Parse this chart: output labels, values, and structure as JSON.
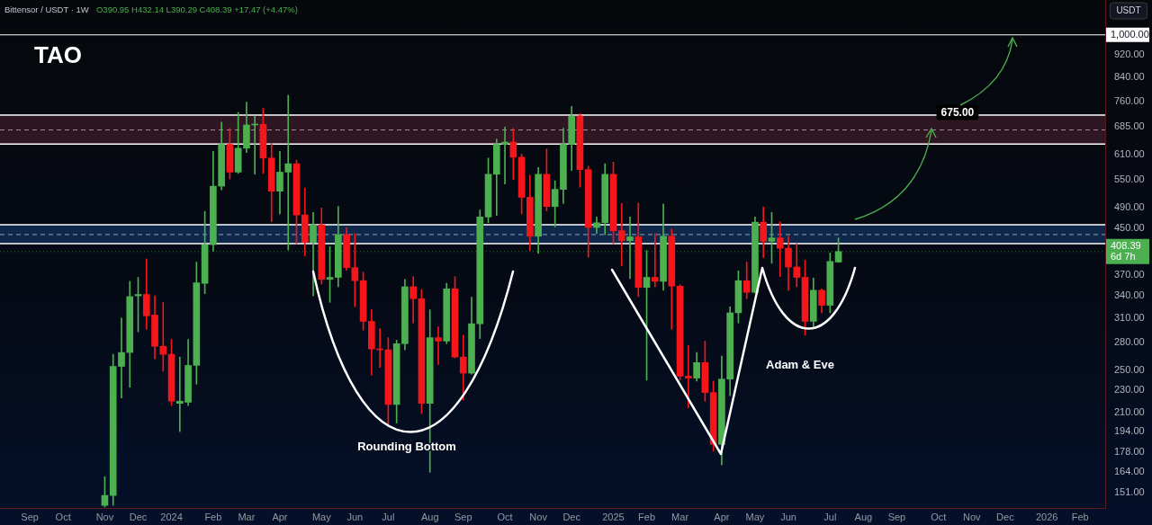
{
  "chart_data": {
    "type": "candlestick",
    "title": "TAO",
    "ylabel": "USDT",
    "x": [
      "2023-11-06",
      "2023-11-13",
      "2023-11-20",
      "2023-11-27",
      "2023-12-04",
      "2023-12-11",
      "2023-12-18",
      "2023-12-25",
      "2024-01-01",
      "2024-01-08",
      "2024-01-15",
      "2024-01-22",
      "2024-01-29",
      "2024-02-05",
      "2024-02-12",
      "2024-02-19",
      "2024-02-26",
      "2024-03-04",
      "2024-03-11",
      "2024-03-18",
      "2024-03-25",
      "2024-04-01",
      "2024-04-08",
      "2024-04-15",
      "2024-04-22",
      "2024-04-29",
      "2024-05-06",
      "2024-05-13",
      "2024-05-20",
      "2024-05-27",
      "2024-06-03",
      "2024-06-10",
      "2024-06-17",
      "2024-06-24",
      "2024-07-01",
      "2024-07-08",
      "2024-07-15",
      "2024-07-22",
      "2024-07-29",
      "2024-08-05",
      "2024-08-12",
      "2024-08-19",
      "2024-08-26",
      "2024-09-02",
      "2024-09-09",
      "2024-09-16",
      "2024-09-23",
      "2024-09-30",
      "2024-10-07",
      "2024-10-14",
      "2024-10-21",
      "2024-10-28",
      "2024-11-04",
      "2024-11-11",
      "2024-11-18",
      "2024-11-25",
      "2024-12-02",
      "2024-12-09",
      "2024-12-16",
      "2024-12-23",
      "2024-12-30",
      "2025-01-06",
      "2025-01-13",
      "2025-01-20",
      "2025-01-27",
      "2025-02-03",
      "2025-02-10",
      "2025-02-17",
      "2025-02-24",
      "2025-03-03",
      "2025-03-10",
      "2025-03-17",
      "2025-03-24",
      "2025-03-31",
      "2025-04-07",
      "2025-04-14",
      "2025-04-21",
      "2025-04-28",
      "2025-05-05",
      "2025-05-12",
      "2025-05-19",
      "2025-05-26",
      "2025-06-02",
      "2025-06-09",
      "2025-06-16",
      "2025-06-23",
      "2025-06-30",
      "2025-07-07",
      "2025-07-14"
    ],
    "ohlc": [
      [
        143,
        161,
        142,
        149
      ],
      [
        149,
        267,
        143,
        254
      ],
      [
        254,
        310,
        223,
        269
      ],
      [
        269,
        361,
        233,
        339
      ],
      [
        340,
        367,
        293,
        342
      ],
      [
        342,
        396,
        296,
        313
      ],
      [
        314,
        340,
        262,
        276
      ],
      [
        276,
        331,
        249,
        267
      ],
      [
        267,
        284,
        216,
        220
      ],
      [
        218,
        264,
        194,
        220
      ],
      [
        219,
        284,
        216,
        255
      ],
      [
        255,
        391,
        236,
        359
      ],
      [
        358,
        482,
        343,
        420
      ],
      [
        420,
        618,
        409,
        535
      ],
      [
        535,
        697,
        527,
        636
      ],
      [
        636,
        679,
        551,
        567
      ],
      [
        567,
        726,
        564,
        626
      ],
      [
        626,
        757,
        615,
        689
      ],
      [
        689,
        715,
        562,
        691
      ],
      [
        691,
        738,
        564,
        601
      ],
      [
        601,
        638,
        462,
        524
      ],
      [
        524,
        618,
        477,
        567
      ],
      [
        567,
        779,
        411,
        587
      ],
      [
        587,
        596,
        422,
        475
      ],
      [
        475,
        531,
        401,
        424
      ],
      [
        424,
        480,
        340,
        456
      ],
      [
        456,
        489,
        357,
        364
      ],
      [
        364,
        417,
        331,
        367
      ],
      [
        367,
        492,
        353,
        438
      ],
      [
        438,
        451,
        378,
        382
      ],
      [
        382,
        440,
        325,
        362
      ],
      [
        362,
        375,
        295,
        306
      ],
      [
        306,
        321,
        245,
        273
      ],
      [
        273,
        297,
        253,
        272
      ],
      [
        272,
        286,
        200,
        217
      ],
      [
        217,
        283,
        201,
        279
      ],
      [
        279,
        364,
        272,
        353
      ],
      [
        353,
        368,
        304,
        336
      ],
      [
        336,
        349,
        209,
        218
      ],
      [
        218,
        321,
        164,
        286
      ],
      [
        286,
        299,
        256,
        282
      ],
      [
        282,
        358,
        279,
        350
      ],
      [
        350,
        368,
        263,
        264
      ],
      [
        264,
        289,
        221,
        247
      ],
      [
        247,
        338,
        246,
        303
      ],
      [
        303,
        485,
        285,
        471
      ],
      [
        471,
        601,
        460,
        562
      ],
      [
        562,
        650,
        474,
        636
      ],
      [
        636,
        683,
        540,
        642
      ],
      [
        642,
        679,
        550,
        603
      ],
      [
        603,
        611,
        477,
        511
      ],
      [
        511,
        560,
        410,
        435
      ],
      [
        435,
        578,
        405,
        562
      ],
      [
        562,
        624,
        483,
        492
      ],
      [
        492,
        547,
        452,
        528
      ],
      [
        528,
        680,
        498,
        636
      ],
      [
        636,
        744,
        571,
        715
      ],
      [
        715,
        722,
        533,
        573
      ],
      [
        573,
        581,
        399,
        451
      ],
      [
        451,
        471,
        440,
        460
      ],
      [
        460,
        587,
        438,
        562
      ],
      [
        562,
        591,
        422,
        445
      ],
      [
        445,
        498,
        385,
        427
      ],
      [
        427,
        471,
        365,
        434
      ],
      [
        434,
        499,
        339,
        352
      ],
      [
        352,
        410,
        240,
        367
      ],
      [
        367,
        440,
        353,
        361
      ],
      [
        361,
        497,
        348,
        435
      ],
      [
        435,
        448,
        296,
        354
      ],
      [
        354,
        356,
        240,
        244
      ],
      [
        244,
        277,
        214,
        242
      ],
      [
        242,
        269,
        239,
        258
      ],
      [
        258,
        282,
        220,
        228
      ],
      [
        228,
        239,
        179,
        184
      ],
      [
        184,
        265,
        169,
        241
      ],
      [
        241,
        325,
        225,
        317
      ],
      [
        317,
        377,
        304,
        362
      ],
      [
        362,
        391,
        336,
        345
      ],
      [
        345,
        471,
        344,
        461
      ],
      [
        461,
        491,
        398,
        426
      ],
      [
        426,
        480,
        389,
        432
      ],
      [
        432,
        462,
        368,
        414
      ],
      [
        414,
        435,
        348,
        383
      ],
      [
        383,
        422,
        353,
        367
      ],
      [
        367,
        394,
        289,
        306
      ],
      [
        306,
        366,
        297,
        348
      ],
      [
        348,
        350,
        317,
        327
      ],
      [
        327,
        406,
        317,
        392
      ],
      [
        390.95,
        432.14,
        390.29,
        408.39
      ]
    ],
    "colors": [
      "#4caf50",
      "#4caf50",
      "#4caf50",
      "#4caf50",
      "#4caf50",
      "#f5161b",
      "#f5161b",
      "#f5161b",
      "#f5161b",
      "#4caf50",
      "#4caf50",
      "#4caf50",
      "#4caf50",
      "#4caf50",
      "#4caf50",
      "#f5161b",
      "#4caf50",
      "#4caf50",
      "#4caf50",
      "#f5161b",
      "#f5161b",
      "#4caf50",
      "#4caf50",
      "#f5161b",
      "#f5161b",
      "#4caf50",
      "#f5161b",
      "#4caf50",
      "#4caf50",
      "#f5161b",
      "#f5161b",
      "#f5161b",
      "#f5161b",
      "#f5161b",
      "#f5161b",
      "#4caf50",
      "#4caf50",
      "#f5161b",
      "#f5161b",
      "#4caf50",
      "#f5161b",
      "#4caf50",
      "#f5161b",
      "#f5161b",
      "#4caf50",
      "#4caf50",
      "#4caf50",
      "#4caf50",
      "#4caf50",
      "#f5161b",
      "#f5161b",
      "#f5161b",
      "#4caf50",
      "#f5161b",
      "#4caf50",
      "#4caf50",
      "#4caf50",
      "#f5161b",
      "#f5161b",
      "#4caf50",
      "#4caf50",
      "#f5161b",
      "#f5161b",
      "#4caf50",
      "#f5161b",
      "#4caf50",
      "#f5161b",
      "#4caf50",
      "#f5161b",
      "#f5161b",
      "#f5161b",
      "#4caf50",
      "#f5161b",
      "#f5161b",
      "#4caf50",
      "#4caf50",
      "#4caf50",
      "#f5161b",
      "#4caf50",
      "#f5161b",
      "#4caf50",
      "#f5161b",
      "#f5161b",
      "#f5161b",
      "#f5161b",
      "#4caf50",
      "#f5161b",
      "#4caf50",
      "#4caf50"
    ],
    "xlim": [
      "2023-08-10",
      "2026-02-23"
    ],
    "xticks": [
      {
        "value": "2023-09-04",
        "label": "Sep"
      },
      {
        "value": "2023-10-02",
        "label": "Oct"
      },
      {
        "value": "2023-11-06",
        "label": "Nov"
      },
      {
        "value": "2023-12-04",
        "label": "Dec"
      },
      {
        "value": "2024-01-01",
        "label": "2024"
      },
      {
        "value": "2024-02-05",
        "label": "Feb"
      },
      {
        "value": "2024-03-04",
        "label": "Mar"
      },
      {
        "value": "2024-04-01",
        "label": "Apr"
      },
      {
        "value": "2024-05-06",
        "label": "May"
      },
      {
        "value": "2024-06-03",
        "label": "Jun"
      },
      {
        "value": "2024-07-01",
        "label": "Jul"
      },
      {
        "value": "2024-08-05",
        "label": "Aug"
      },
      {
        "value": "2024-09-02",
        "label": "Sep"
      },
      {
        "value": "2024-10-07",
        "label": "Oct"
      },
      {
        "value": "2024-11-04",
        "label": "Nov"
      },
      {
        "value": "2024-12-02",
        "label": "Dec"
      },
      {
        "value": "2025-01-06",
        "label": "2025"
      },
      {
        "value": "2025-02-03",
        "label": "Feb"
      },
      {
        "value": "2025-03-03",
        "label": "Mar"
      },
      {
        "value": "2025-04-07",
        "label": "Apr"
      },
      {
        "value": "2025-05-05",
        "label": "May"
      },
      {
        "value": "2025-06-02",
        "label": "Jun"
      },
      {
        "value": "2025-07-07",
        "label": "Jul"
      },
      {
        "value": "2025-08-04",
        "label": "Aug"
      },
      {
        "value": "2025-09-01",
        "label": "Sep"
      },
      {
        "value": "2025-10-06",
        "label": "Oct"
      },
      {
        "value": "2025-11-03",
        "label": "Nov"
      },
      {
        "value": "2025-12-01",
        "label": "Dec"
      },
      {
        "value": "2026-01-05",
        "label": "2026"
      },
      {
        "value": "2026-02-02",
        "label": "Feb"
      }
    ],
    "ylim": [
      141.5,
      1155
    ],
    "yticks": [
      {
        "value": 151,
        "label": "151.00"
      },
      {
        "value": 164,
        "label": "164.00"
      },
      {
        "value": 178,
        "label": "178.00"
      },
      {
        "value": 194,
        "label": "194.00"
      },
      {
        "value": 210,
        "label": "210.00"
      },
      {
        "value": 230,
        "label": "230.00"
      },
      {
        "value": 250,
        "label": "250.00"
      },
      {
        "value": 280,
        "label": "280.00"
      },
      {
        "value": 310,
        "label": "310.00"
      },
      {
        "value": 340,
        "label": "340.00"
      },
      {
        "value": 370,
        "label": "370.00"
      },
      {
        "value": 450,
        "label": "450.00"
      },
      {
        "value": 490,
        "label": "490.00"
      },
      {
        "value": 550,
        "label": "550.00"
      },
      {
        "value": 610,
        "label": "610.00"
      },
      {
        "value": 685,
        "label": "685.00"
      },
      {
        "value": 760,
        "label": "760.00"
      },
      {
        "value": 840,
        "label": "840.00"
      },
      {
        "value": 920,
        "label": "920.00"
      }
    ],
    "log": true,
    "bands": [
      {
        "axis": "y",
        "from": 637,
        "to": 718,
        "color": "#2e1623"
      },
      {
        "axis": "y",
        "from": 422,
        "to": 456,
        "color": "#0f2748"
      }
    ],
    "ref_lines": [
      {
        "axis": "y",
        "value": 1000,
        "label": "1,000.00",
        "color": "#ffffff",
        "line_style": "solid"
      },
      {
        "axis": "y",
        "value": 675,
        "color": "#b08a9c",
        "line_style": "dashed"
      },
      {
        "axis": "y",
        "value": 438,
        "color": "#8fa3c2",
        "line_style": "dashed"
      },
      {
        "axis": "y",
        "value": 408.39,
        "label": "408.39\n6d 7h",
        "color": "#4caf50",
        "line_style": "dotted"
      }
    ],
    "annotations": [
      "Bittensor / USDT · 1W",
      "O390.95 H432.14 L390.29 C408.39 +17.47 (+4.47%)",
      "Rounding Bottom",
      "Adam & Eve",
      {
        "text": "675.00",
        "x": "2025-10-22",
        "y": 726
      }
    ]
  }
}
